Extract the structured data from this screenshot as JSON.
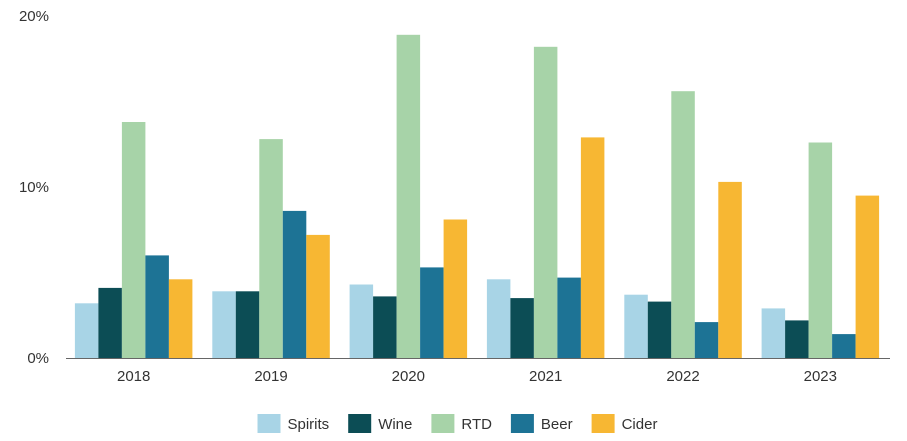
{
  "chart_data": {
    "type": "bar",
    "title": "",
    "xlabel": "",
    "ylabel": "",
    "ylim": [
      0,
      20
    ],
    "y_ticks": [
      {
        "value": 0,
        "label": "0%"
      },
      {
        "value": 10,
        "label": "10%"
      },
      {
        "value": 20,
        "label": "20%"
      }
    ],
    "categories": [
      "2018",
      "2019",
      "2020",
      "2021",
      "2022",
      "2023"
    ],
    "series": [
      {
        "name": "Spirits",
        "color": "#a8d4e6",
        "values": [
          3.2,
          3.9,
          4.3,
          4.6,
          3.7,
          2.9
        ]
      },
      {
        "name": "Wine",
        "color": "#0c4d55",
        "values": [
          4.1,
          3.9,
          3.6,
          3.5,
          3.3,
          2.2
        ]
      },
      {
        "name": "RTD",
        "color": "#a7d3a8",
        "values": [
          13.8,
          12.8,
          18.9,
          18.2,
          15.6,
          12.6
        ]
      },
      {
        "name": "Beer",
        "color": "#1d7395",
        "values": [
          6.0,
          8.6,
          5.3,
          4.7,
          2.1,
          1.4
        ]
      },
      {
        "name": "Cider",
        "color": "#f7b733",
        "values": [
          4.6,
          7.2,
          8.1,
          12.9,
          10.3,
          9.5
        ]
      }
    ],
    "legend_position": "bottom-center",
    "grid": false
  }
}
